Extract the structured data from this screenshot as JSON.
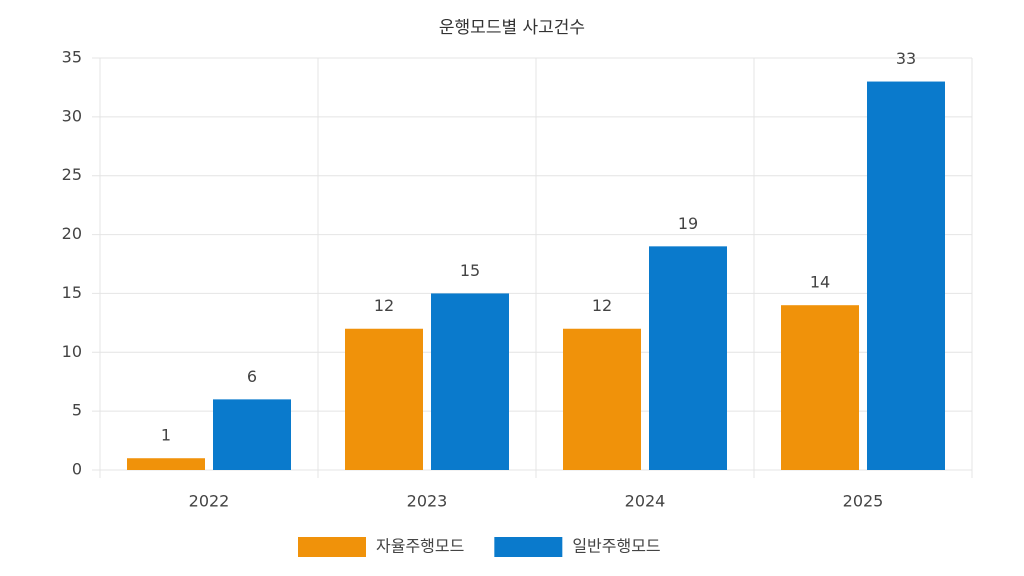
{
  "chart_data": {
    "type": "bar",
    "title": "운행모드별 사고건수",
    "categories": [
      "2022",
      "2023",
      "2024",
      "2025"
    ],
    "series": [
      {
        "name": "자율주행모드",
        "color": "#f0920a",
        "values": [
          1,
          12,
          12,
          14
        ]
      },
      {
        "name": "일반주행모드",
        "color": "#0a7acc",
        "values": [
          6,
          15,
          19,
          33
        ]
      }
    ],
    "ylim": [
      0,
      35
    ],
    "yticks": [
      0,
      5,
      10,
      15,
      20,
      25,
      30,
      35
    ],
    "grid": true,
    "legend": "bottom"
  }
}
